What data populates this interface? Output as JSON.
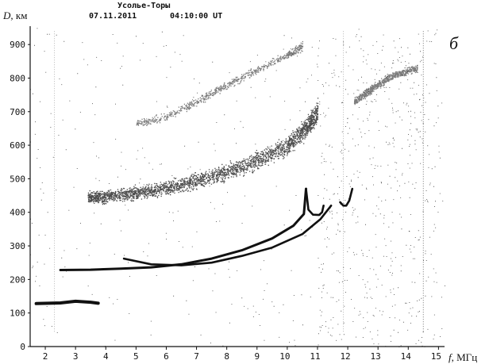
{
  "panel_label": "б",
  "chart_data": {
    "type": "scatter",
    "title": "Усолье-Торы",
    "subtitle_date": "07.11.2011",
    "subtitle_time": "04:10:00 UT",
    "ylabel_symbol": "D",
    "ylabel_unit": ", км",
    "xlabel_symbol": "f",
    "xlabel_unit": ", МГц",
    "xlim": [
      1.5,
      15.2
    ],
    "ylim": [
      0,
      950
    ],
    "x_ticks": [
      "2",
      "3",
      "4",
      "5",
      "6",
      "7",
      "8",
      "9",
      "10",
      "11",
      "12",
      "13",
      "14",
      "15"
    ],
    "y_ticks": [
      "0",
      "100",
      "200",
      "300",
      "400",
      "500",
      "600",
      "700",
      "800",
      "900"
    ],
    "grid": false,
    "legend": "none",
    "traces": [
      {
        "name": "",
        "kind": "line",
        "x": [
          2.5,
          3.5,
          4.5,
          5.5,
          6.5,
          7.5,
          8.5,
          9.5,
          10.2,
          10.55,
          10.62
        ],
        "y": [
          228,
          229,
          232,
          236,
          245,
          262,
          287,
          322,
          360,
          395,
          470
        ]
      },
      {
        "name": "",
        "kind": "line",
        "x": [
          10.62,
          10.7,
          10.85,
          11.05,
          11.15,
          11.2
        ],
        "y": [
          470,
          408,
          393,
          392,
          400,
          420
        ]
      },
      {
        "name": "",
        "kind": "line",
        "x": [
          4.6,
          5.5,
          6.5,
          7.5,
          8.5,
          9.5,
          10.5,
          11.1,
          11.45
        ],
        "y": [
          262,
          245,
          242,
          250,
          270,
          295,
          335,
          380,
          420
        ]
      },
      {
        "name": "",
        "kind": "line",
        "x": [
          11.75,
          11.85,
          11.95,
          12.05,
          12.15
        ],
        "y": [
          430,
          420,
          420,
          435,
          470
        ]
      },
      {
        "name": "",
        "kind": "line",
        "x": [
          1.7,
          2.5,
          3.0,
          3.5,
          3.75
        ],
        "y": [
          128,
          130,
          135,
          132,
          129
        ]
      },
      {
        "name": "",
        "kind": "cloud",
        "x": [
          3.4,
          4.0,
          5.0,
          6.0,
          7.0,
          8.0,
          9.0,
          10.0,
          10.6,
          11.0
        ],
        "y": [
          445,
          448,
          458,
          472,
          495,
          522,
          555,
          600,
          650,
          700
        ]
      },
      {
        "name": "",
        "kind": "cloud",
        "x": [
          5.0,
          6.0,
          7.0,
          8.0,
          9.0,
          10.0,
          10.5
        ],
        "y": [
          665,
          685,
          730,
          780,
          825,
          870,
          895
        ]
      },
      {
        "name": "",
        "kind": "cloud",
        "x": [
          12.2,
          12.8,
          13.5,
          14.3
        ],
        "y": [
          730,
          770,
          810,
          830
        ]
      }
    ]
  }
}
